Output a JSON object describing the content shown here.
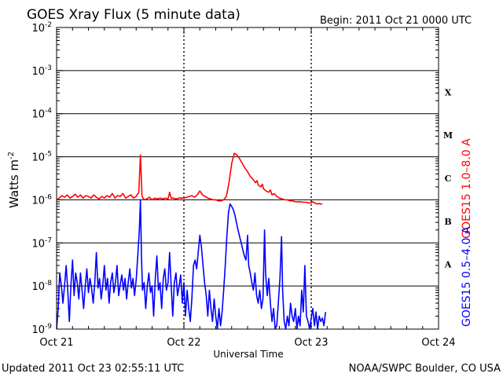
{
  "header": {
    "title": "GOES Xray Flux (5 minute data)",
    "begin": "Begin:  2011 Oct 21 0000 UTC"
  },
  "footer": {
    "updated": "Updated 2011 Oct 23 02:55:11 UTC",
    "credit": "NOAA/SWPC Boulder, CO USA"
  },
  "chart_data": {
    "type": "line",
    "title": "GOES Xray Flux (5 minute data)",
    "xlabel": "Universal Time",
    "ylabel": "Watts m",
    "ylabel_superscript": "-2",
    "y_scale": "log",
    "ylim": [
      1e-09,
      0.01
    ],
    "xlim_hours": [
      0,
      72
    ],
    "x_ticks": [
      {
        "hour": 0,
        "label": "Oct 21"
      },
      {
        "hour": 24,
        "label": "Oct 22"
      },
      {
        "hour": 48,
        "label": "Oct 23"
      },
      {
        "hour": 72,
        "label": "Oct 24"
      }
    ],
    "y_ticks": [
      {
        "exp": -9,
        "label": "10",
        "sup": "-9"
      },
      {
        "exp": -8,
        "label": "10",
        "sup": "-8"
      },
      {
        "exp": -7,
        "label": "10",
        "sup": "-7"
      },
      {
        "exp": -6,
        "label": "10",
        "sup": "-6"
      },
      {
        "exp": -5,
        "label": "10",
        "sup": "-5"
      },
      {
        "exp": -4,
        "label": "10",
        "sup": "-4"
      },
      {
        "exp": -3,
        "label": "10",
        "sup": "-3"
      },
      {
        "exp": -2,
        "label": "10",
        "sup": "-2"
      }
    ],
    "flare_classes": [
      {
        "label": "A",
        "exp": -7.5
      },
      {
        "label": "B",
        "exp": -6.5
      },
      {
        "label": "C",
        "exp": -5.5
      },
      {
        "label": "M",
        "exp": -4.5
      },
      {
        "label": "X",
        "exp": -3.5
      }
    ],
    "grid": "horizontal lines at each decade from 1e-8 to 1e-3",
    "series": [
      {
        "name": "GOES15 1.0–8.0 A",
        "color": "#ff0000",
        "points": [
          [
            0.0,
            1e-06
          ],
          [
            0.5,
            1.1e-06
          ],
          [
            1.0,
            1.25e-06
          ],
          [
            1.5,
            1.15e-06
          ],
          [
            2.0,
            1.3e-06
          ],
          [
            2.5,
            1.1e-06
          ],
          [
            3.0,
            1.2e-06
          ],
          [
            3.5,
            1.35e-06
          ],
          [
            4.0,
            1.15e-06
          ],
          [
            4.5,
            1.3e-06
          ],
          [
            5.0,
            1.1e-06
          ],
          [
            5.5,
            1.25e-06
          ],
          [
            6.0,
            1.2e-06
          ],
          [
            6.5,
            1.1e-06
          ],
          [
            7.0,
            1.3e-06
          ],
          [
            7.5,
            1.15e-06
          ],
          [
            8.0,
            1.05e-06
          ],
          [
            8.5,
            1.2e-06
          ],
          [
            9.0,
            1.1e-06
          ],
          [
            9.5,
            1.25e-06
          ],
          [
            10.0,
            1.15e-06
          ],
          [
            10.5,
            1.4e-06
          ],
          [
            11.0,
            1.1e-06
          ],
          [
            11.5,
            1.25e-06
          ],
          [
            12.0,
            1.2e-06
          ],
          [
            12.5,
            1.4e-06
          ],
          [
            13.0,
            1.1e-06
          ],
          [
            13.5,
            1.2e-06
          ],
          [
            14.0,
            1.3e-06
          ],
          [
            14.5,
            1.1e-06
          ],
          [
            15.0,
            1.2e-06
          ],
          [
            15.5,
            1.5e-06
          ],
          [
            15.8,
            1.1e-05
          ],
          [
            16.1,
            1.2e-06
          ],
          [
            16.5,
            1e-06
          ],
          [
            17.0,
            1.05e-06
          ],
          [
            17.5,
            1.15e-06
          ],
          [
            18.0,
            1e-06
          ],
          [
            18.5,
            1.1e-06
          ],
          [
            19.0,
            1.05e-06
          ],
          [
            19.5,
            1.1e-06
          ],
          [
            20.0,
            1.05e-06
          ],
          [
            20.5,
            1.1e-06
          ],
          [
            21.0,
            1.05e-06
          ],
          [
            21.3,
            1.5e-06
          ],
          [
            21.6,
            1.1e-06
          ],
          [
            22.0,
            1.1e-06
          ],
          [
            22.5,
            1.05e-06
          ],
          [
            23.0,
            1.1e-06
          ],
          [
            23.5,
            1.1e-06
          ],
          [
            24.0,
            1.1e-06
          ],
          [
            24.5,
            1.15e-06
          ],
          [
            25.0,
            1.2e-06
          ],
          [
            25.5,
            1.25e-06
          ],
          [
            26.0,
            1.15e-06
          ],
          [
            26.5,
            1.3e-06
          ],
          [
            27.0,
            1.6e-06
          ],
          [
            27.5,
            1.3e-06
          ],
          [
            28.0,
            1.2e-06
          ],
          [
            28.5,
            1.1e-06
          ],
          [
            29.0,
            1.05e-06
          ],
          [
            29.5,
            1e-06
          ],
          [
            30.0,
            1e-06
          ],
          [
            30.5,
            9.5e-07
          ],
          [
            31.0,
            9.5e-07
          ],
          [
            31.5,
            1e-06
          ],
          [
            32.0,
            1.2e-06
          ],
          [
            32.5,
            2.5e-06
          ],
          [
            33.0,
            7e-06
          ],
          [
            33.5,
            1.2e-05
          ],
          [
            34.0,
            1.1e-05
          ],
          [
            34.5,
            9e-06
          ],
          [
            35.0,
            7e-06
          ],
          [
            35.5,
            5.5e-06
          ],
          [
            36.0,
            4.5e-06
          ],
          [
            36.5,
            3.5e-06
          ],
          [
            37.0,
            3e-06
          ],
          [
            37.5,
            2.5e-06
          ],
          [
            37.8,
            2.8e-06
          ],
          [
            38.0,
            2.2e-06
          ],
          [
            38.5,
            2e-06
          ],
          [
            38.8,
            2.3e-06
          ],
          [
            39.0,
            1.8e-06
          ],
          [
            39.5,
            1.6e-06
          ],
          [
            40.0,
            1.5e-06
          ],
          [
            40.3,
            1.7e-06
          ],
          [
            40.6,
            1.3e-06
          ],
          [
            41.0,
            1.4e-06
          ],
          [
            41.5,
            1.2e-06
          ],
          [
            42.0,
            1.1e-06
          ],
          [
            42.5,
            1.05e-06
          ],
          [
            43.0,
            1e-06
          ],
          [
            43.5,
            1e-06
          ],
          [
            44.0,
            9.5e-07
          ],
          [
            44.5,
            9.5e-07
          ],
          [
            45.0,
            9e-07
          ],
          [
            45.5,
            9e-07
          ],
          [
            46.0,
            9e-07
          ],
          [
            46.5,
            8.8e-07
          ],
          [
            47.0,
            8.8e-07
          ],
          [
            47.5,
            8.5e-07
          ],
          [
            48.0,
            8.5e-07
          ],
          [
            48.3,
            9e-07
          ],
          [
            48.6,
            8.5e-07
          ],
          [
            48.9,
            8.2e-07
          ],
          [
            49.2,
            8e-07
          ],
          [
            49.5,
            8.2e-07
          ],
          [
            49.8,
            8e-07
          ],
          [
            50.1,
            8e-07
          ]
        ]
      },
      {
        "name": "GOES15 0.5–4.0 A",
        "color": "#0000ff",
        "points": [
          [
            0.0,
            1e-09
          ],
          [
            0.3,
            3e-09
          ],
          [
            0.6,
            2e-08
          ],
          [
            0.9,
            1e-08
          ],
          [
            1.2,
            4e-09
          ],
          [
            1.5,
            1e-08
          ],
          [
            1.8,
            3e-08
          ],
          [
            2.1,
            8e-09
          ],
          [
            2.4,
            1.5e-09
          ],
          [
            2.7,
            1e-08
          ],
          [
            3.0,
            4e-08
          ],
          [
            3.3,
            6e-09
          ],
          [
            3.6,
            2e-08
          ],
          [
            3.9,
            1.2e-08
          ],
          [
            4.2,
            5e-09
          ],
          [
            4.5,
            2e-08
          ],
          [
            4.8,
            8e-09
          ],
          [
            5.1,
            3e-09
          ],
          [
            5.4,
            1e-08
          ],
          [
            5.7,
            2.5e-08
          ],
          [
            6.0,
            7e-09
          ],
          [
            6.3,
            1.5e-08
          ],
          [
            6.6,
            9e-09
          ],
          [
            6.9,
            4e-09
          ],
          [
            7.2,
            1.2e-08
          ],
          [
            7.5,
            6e-08
          ],
          [
            7.8,
            9e-09
          ],
          [
            8.1,
            1.5e-08
          ],
          [
            8.4,
            5e-09
          ],
          [
            8.7,
            1e-08
          ],
          [
            9.0,
            3e-08
          ],
          [
            9.3,
            8e-09
          ],
          [
            9.6,
            1.5e-08
          ],
          [
            9.9,
            4e-09
          ],
          [
            10.2,
            1.2e-08
          ],
          [
            10.5,
            2e-08
          ],
          [
            10.8,
            7e-09
          ],
          [
            11.1,
            1.2e-08
          ],
          [
            11.4,
            3e-08
          ],
          [
            11.7,
            6e-09
          ],
          [
            12.0,
            1.1e-08
          ],
          [
            12.3,
            1.8e-08
          ],
          [
            12.6,
            8e-09
          ],
          [
            12.9,
            1.5e-08
          ],
          [
            13.2,
            5e-09
          ],
          [
            13.5,
            1.2e-08
          ],
          [
            13.8,
            2.5e-08
          ],
          [
            14.1,
            9e-09
          ],
          [
            14.4,
            1.5e-08
          ],
          [
            14.7,
            6e-09
          ],
          [
            15.0,
            1.4e-08
          ],
          [
            15.3,
            5e-08
          ],
          [
            15.6,
            2e-07
          ],
          [
            15.8,
            1e-06
          ],
          [
            16.0,
            5e-08
          ],
          [
            16.2,
            8e-09
          ],
          [
            16.5,
            1.2e-08
          ],
          [
            16.8,
            3e-09
          ],
          [
            17.1,
            1e-08
          ],
          [
            17.4,
            2e-08
          ],
          [
            17.7,
            7e-09
          ],
          [
            18.0,
            1e-08
          ],
          [
            18.3,
            2e-09
          ],
          [
            18.6,
            1.5e-08
          ],
          [
            18.9,
            5e-08
          ],
          [
            19.2,
            8e-09
          ],
          [
            19.5,
            1.2e-08
          ],
          [
            19.8,
            3e-09
          ],
          [
            20.1,
            1.5e-08
          ],
          [
            20.4,
            2.5e-08
          ],
          [
            20.7,
            8e-09
          ],
          [
            21.0,
            1.2e-08
          ],
          [
            21.3,
            6e-08
          ],
          [
            21.6,
            1e-08
          ],
          [
            21.9,
            2e-09
          ],
          [
            22.2,
            1.2e-08
          ],
          [
            22.5,
            2e-08
          ],
          [
            22.8,
            6e-09
          ],
          [
            23.1,
            1e-08
          ],
          [
            23.4,
            1.8e-08
          ],
          [
            23.7,
            4e-09
          ],
          [
            24.0,
            1.2e-08
          ],
          [
            24.3,
            2e-09
          ],
          [
            24.6,
            8e-09
          ],
          [
            24.9,
            3e-09
          ],
          [
            25.2,
            1.5e-09
          ],
          [
            25.5,
            5e-09
          ],
          [
            25.8,
            3e-08
          ],
          [
            26.1,
            4e-08
          ],
          [
            26.4,
            2.5e-08
          ],
          [
            26.7,
            6e-08
          ],
          [
            27.0,
            1.5e-07
          ],
          [
            27.3,
            8e-08
          ],
          [
            27.6,
            3e-08
          ],
          [
            27.9,
            1.2e-08
          ],
          [
            28.2,
            6e-09
          ],
          [
            28.5,
            2e-09
          ],
          [
            28.8,
            8e-09
          ],
          [
            29.1,
            3e-09
          ],
          [
            29.4,
            1.5e-09
          ],
          [
            29.7,
            5e-09
          ],
          [
            30.0,
            2e-09
          ],
          [
            30.3,
            1e-09
          ],
          [
            30.6,
            3e-09
          ],
          [
            30.9,
            1.2e-09
          ],
          [
            31.2,
            2.5e-09
          ],
          [
            31.5,
            8e-09
          ],
          [
            31.8,
            3e-08
          ],
          [
            32.1,
            1.5e-07
          ],
          [
            32.4,
            5e-07
          ],
          [
            32.7,
            8e-07
          ],
          [
            33.0,
            7e-07
          ],
          [
            33.3,
            6e-07
          ],
          [
            33.6,
            4.5e-07
          ],
          [
            33.9,
            3e-07
          ],
          [
            34.2,
            2e-07
          ],
          [
            34.5,
            1.4e-07
          ],
          [
            34.8,
            1e-07
          ],
          [
            35.1,
            7e-08
          ],
          [
            35.4,
            5e-08
          ],
          [
            35.7,
            4e-08
          ],
          [
            36.0,
            1.5e-07
          ],
          [
            36.2,
            3e-08
          ],
          [
            36.5,
            2e-08
          ],
          [
            36.8,
            1.2e-08
          ],
          [
            37.1,
            8e-09
          ],
          [
            37.4,
            2e-08
          ],
          [
            37.7,
            6e-09
          ],
          [
            38.0,
            4e-09
          ],
          [
            38.3,
            8e-09
          ],
          [
            38.6,
            3e-09
          ],
          [
            38.9,
            5e-09
          ],
          [
            39.2,
            2e-07
          ],
          [
            39.4,
            2e-08
          ],
          [
            39.7,
            6e-09
          ],
          [
            40.0,
            1.5e-08
          ],
          [
            40.3,
            4e-09
          ],
          [
            40.6,
            1.5e-09
          ],
          [
            40.9,
            3e-09
          ],
          [
            41.2,
            1e-09
          ],
          [
            41.5,
            1.2e-09
          ],
          [
            41.8,
            4e-09
          ],
          [
            42.1,
            1.5e-08
          ],
          [
            42.4,
            1.4e-07
          ],
          [
            42.6,
            8e-09
          ],
          [
            42.9,
            1.5e-09
          ],
          [
            43.2,
            1e-09
          ],
          [
            43.5,
            2e-09
          ],
          [
            43.8,
            1.2e-09
          ],
          [
            44.1,
            4e-09
          ],
          [
            44.4,
            2e-09
          ],
          [
            44.7,
            1.5e-09
          ],
          [
            45.0,
            3e-09
          ],
          [
            45.3,
            1e-09
          ],
          [
            45.6,
            2e-09
          ],
          [
            45.9,
            1.2e-09
          ],
          [
            46.2,
            8e-09
          ],
          [
            46.5,
            2.5e-09
          ],
          [
            46.8,
            3e-08
          ],
          [
            47.1,
            2e-09
          ],
          [
            47.4,
            1.5e-09
          ],
          [
            47.7,
            1e-09
          ],
          [
            48.0,
            1.8e-09
          ],
          [
            48.3,
            3e-09
          ],
          [
            48.6,
            1.2e-09
          ],
          [
            48.9,
            2.5e-09
          ],
          [
            49.2,
            1e-09
          ],
          [
            49.5,
            2e-09
          ],
          [
            49.8,
            1.5e-09
          ],
          [
            50.1,
            1.8e-09
          ],
          [
            50.4,
            1.2e-09
          ],
          [
            50.7,
            2.5e-09
          ]
        ]
      }
    ]
  }
}
